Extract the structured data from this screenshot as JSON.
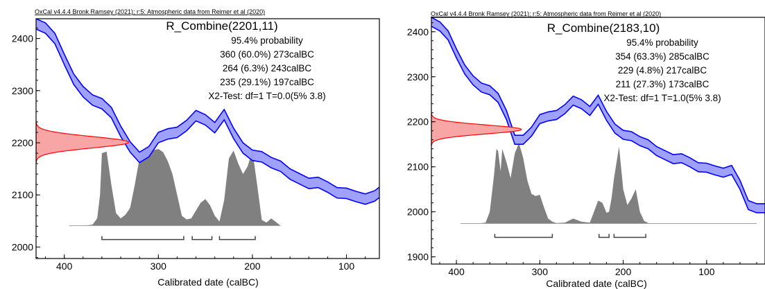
{
  "chart_data": [
    {
      "type": "area",
      "credit": "OxCal v4.4.4 Bronk Ramsey (2021); r:5: Atmospheric data from Reimer et al (2020)",
      "title": "R_Combine(2201,11)",
      "xlabel": "Calibrated date (calBC)",
      "ylabel": "",
      "x_reversed": true,
      "xlim": [
        430,
        65
      ],
      "ylim": [
        1978,
        2438
      ],
      "x_ticks": [
        400,
        300,
        200,
        100
      ],
      "y_ticks": [
        2000,
        2100,
        2200,
        2300,
        2400
      ],
      "summary_lines": [
        "95.4% probability",
        "360 (60.0%) 273calBC",
        "264 (6.3%) 243calBC",
        "235 (29.1%) 197calBC",
        "X2-Test: df=1 T=0.0(5% 3.8)"
      ],
      "measurement": {
        "mean": 2201,
        "sigma": 11,
        "color": "#ff0000"
      },
      "calibration_curve": {
        "color": "#0000ff",
        "fill": "#9b9bff",
        "x": [
          430,
          420,
          410,
          400,
          390,
          380,
          370,
          360,
          350,
          340,
          330,
          320,
          310,
          300,
          290,
          280,
          270,
          260,
          250,
          240,
          230,
          220,
          210,
          200,
          190,
          180,
          170,
          160,
          150,
          140,
          130,
          120,
          110,
          100,
          90,
          80,
          70,
          65
        ],
        "y": [
          2428,
          2420,
          2400,
          2360,
          2322,
          2298,
          2282,
          2275,
          2258,
          2222,
          2192,
          2172,
          2183,
          2210,
          2217,
          2220,
          2233,
          2252,
          2244,
          2229,
          2254,
          2218,
          2190,
          2176,
          2173,
          2162,
          2155,
          2140,
          2131,
          2122,
          2124,
          2115,
          2104,
          2103,
          2097,
          2092,
          2098,
          2105
        ],
        "half_width": 10
      },
      "distribution": {
        "color": "#808080",
        "baseline": 2041,
        "x": [
          395,
          380,
          370,
          365,
          362,
          360,
          355,
          350,
          345,
          340,
          335,
          330,
          325,
          320,
          315,
          310,
          305,
          300,
          295,
          290,
          285,
          280,
          275,
          270,
          265,
          260,
          255,
          250,
          245,
          240,
          235,
          230,
          225,
          220,
          215,
          210,
          205,
          200,
          195,
          190,
          185,
          180,
          175,
          170
        ],
        "y": [
          2041,
          2041,
          2043,
          2055,
          2100,
          2180,
          2183,
          2120,
          2065,
          2055,
          2062,
          2075,
          2120,
          2170,
          2188,
          2190,
          2186,
          2188,
          2182,
          2165,
          2140,
          2100,
          2060,
          2053,
          2055,
          2070,
          2085,
          2092,
          2080,
          2060,
          2049,
          2090,
          2170,
          2185,
          2160,
          2140,
          2155,
          2185,
          2120,
          2052,
          2047,
          2055,
          2048,
          2041
        ]
      },
      "hpd_ranges": [
        [
          360,
          273
        ],
        [
          264,
          243
        ],
        [
          235,
          197
        ]
      ],
      "plot_box": {
        "axes_color": "#000000"
      }
    },
    {
      "type": "area",
      "credit": "OxCal v4.4.4 Bronk Ramsey (2021); r:5: Atmospheric data from Reimer et al (2020)",
      "title": "R_Combine(2183,10)",
      "xlabel": "Calibrated date (calBC)",
      "ylabel": "",
      "x_reversed": true,
      "xlim": [
        430,
        30
      ],
      "ylim": [
        1884,
        2432
      ],
      "x_ticks": [
        400,
        300,
        200,
        100
      ],
      "y_ticks": [
        1900,
        2000,
        2100,
        2200,
        2300,
        2400
      ],
      "summary_lines": [
        "95.4% probability",
        "354 (63.3%) 285calBC",
        "229 (4.8%) 217calBC",
        "211 (27.3%) 173calBC",
        "X2-Test: df=1 T=1.0(5% 3.8)"
      ],
      "measurement": {
        "mean": 2183,
        "sigma": 10,
        "color": "#ff0000"
      },
      "calibration_curve": {
        "color": "#0000ff",
        "fill": "#9b9bff",
        "x": [
          430,
          420,
          410,
          400,
          390,
          380,
          370,
          360,
          350,
          340,
          330,
          320,
          310,
          300,
          290,
          280,
          270,
          260,
          250,
          240,
          230,
          220,
          210,
          200,
          190,
          180,
          170,
          160,
          150,
          140,
          130,
          120,
          110,
          100,
          90,
          80,
          70,
          60,
          50,
          40,
          30
        ],
        "y": [
          2422,
          2412,
          2392,
          2352,
          2316,
          2292,
          2276,
          2270,
          2253,
          2215,
          2160,
          2160,
          2178,
          2206,
          2212,
          2215,
          2228,
          2247,
          2239,
          2224,
          2249,
          2213,
          2185,
          2171,
          2168,
          2157,
          2150,
          2135,
          2126,
          2117,
          2119,
          2110,
          2099,
          2098,
          2092,
          2087,
          2093,
          2060,
          2015,
          2008,
          2008
        ],
        "half_width": 10
      },
      "distribution": {
        "color": "#808080",
        "baseline": 1974,
        "x": [
          395,
          375,
          365,
          360,
          355,
          352,
          350,
          347,
          345,
          340,
          335,
          330,
          325,
          320,
          315,
          310,
          305,
          300,
          295,
          290,
          285,
          280,
          270,
          260,
          250,
          240,
          230,
          225,
          220,
          217,
          214,
          211,
          205,
          200,
          195,
          190,
          185,
          180,
          175,
          170,
          160,
          40
        ],
        "y": [
          1974,
          1974,
          1976,
          2000,
          2080,
          2140,
          2135,
          2090,
          2140,
          2110,
          2075,
          2130,
          2153,
          2120,
          2070,
          2040,
          2035,
          2038,
          2010,
          1985,
          1978,
          1975,
          1976,
          1985,
          1978,
          1976,
          2025,
          2020,
          1998,
          2000,
          2030,
          2075,
          2145,
          2050,
          2015,
          2030,
          2050,
          2000,
          1980,
          1975,
          1974,
          1974
        ]
      },
      "hpd_ranges": [
        [
          354,
          285
        ],
        [
          229,
          217
        ],
        [
          211,
          173
        ]
      ],
      "plot_box": {
        "axes_color": "#000000"
      }
    }
  ]
}
